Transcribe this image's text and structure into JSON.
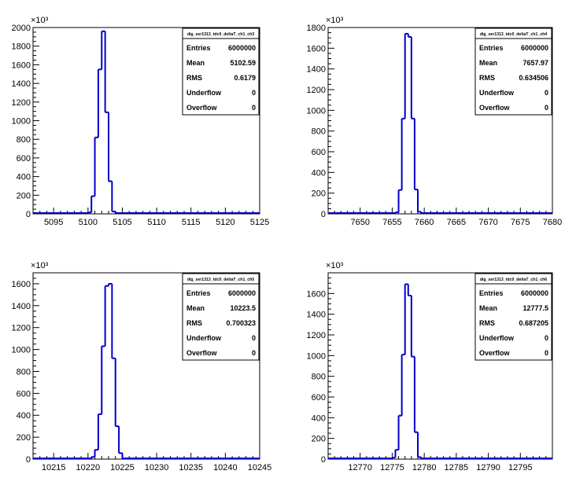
{
  "chart_data": [
    {
      "type": "histogram",
      "stats_title": "dig_ser1313_tdc0_deltaT_ch1_ch3",
      "stats": [
        {
          "label": "Entries",
          "value": "6000000"
        },
        {
          "label": "Mean",
          "value": "5102.59"
        },
        {
          "label": "RMS",
          "value": "0.6179"
        },
        {
          "label": "Underflow",
          "value": "0"
        },
        {
          "label": "Overflow",
          "value": "0"
        }
      ],
      "xlim": [
        5092,
        5125
      ],
      "ylim": [
        0,
        2000
      ],
      "y_exponent": "×10³",
      "xticks": [
        "5095",
        "5100",
        "5105",
        "5110",
        "5115",
        "5120",
        "5125"
      ],
      "yticks": [
        "0",
        "200",
        "400",
        "600",
        "800",
        "1000",
        "1200",
        "1400",
        "1600",
        "1800",
        "2000"
      ],
      "bin_width": 0.5,
      "bins": [
        {
          "x": 5100.0,
          "y": 15
        },
        {
          "x": 5100.5,
          "y": 190
        },
        {
          "x": 5101.0,
          "y": 820
        },
        {
          "x": 5101.5,
          "y": 1550
        },
        {
          "x": 5102.0,
          "y": 1960
        },
        {
          "x": 5102.5,
          "y": 1090
        },
        {
          "x": 5103.0,
          "y": 350
        },
        {
          "x": 5103.5,
          "y": 25
        }
      ],
      "color": "#0000cc"
    },
    {
      "type": "histogram",
      "stats_title": "dig_ser1313_tdc0_deltaT_ch1_ch4",
      "stats": [
        {
          "label": "Entries",
          "value": "6000000"
        },
        {
          "label": "Mean",
          "value": "7657.97"
        },
        {
          "label": "RMS",
          "value": "0.634506"
        },
        {
          "label": "Underflow",
          "value": "0"
        },
        {
          "label": "Overflow",
          "value": "0"
        }
      ],
      "xlim": [
        7645,
        7680
      ],
      "ylim": [
        0,
        1800
      ],
      "y_exponent": "×10³",
      "xticks": [
        "7650",
        "7655",
        "7660",
        "7665",
        "7670",
        "7675",
        "7680"
      ],
      "yticks": [
        "0",
        "200",
        "400",
        "600",
        "800",
        "1000",
        "1200",
        "1400",
        "1600",
        "1800"
      ],
      "bin_width": 0.5,
      "bins": [
        {
          "x": 7655.5,
          "y": 15
        },
        {
          "x": 7656.0,
          "y": 230
        },
        {
          "x": 7656.5,
          "y": 920
        },
        {
          "x": 7657.0,
          "y": 1740
        },
        {
          "x": 7657.5,
          "y": 1710
        },
        {
          "x": 7658.0,
          "y": 920
        },
        {
          "x": 7658.5,
          "y": 235
        },
        {
          "x": 7659.0,
          "y": 20
        }
      ],
      "color": "#0000cc"
    },
    {
      "type": "histogram",
      "stats_title": "dig_ser1313_tdc0_deltaT_ch1_ch5",
      "stats": [
        {
          "label": "Entries",
          "value": "6000000"
        },
        {
          "label": "Mean",
          "value": "10223.5"
        },
        {
          "label": "RMS",
          "value": "0.700323"
        },
        {
          "label": "Underflow",
          "value": "0"
        },
        {
          "label": "Overflow",
          "value": "0"
        }
      ],
      "xlim": [
        10212,
        10245
      ],
      "ylim": [
        0,
        1700
      ],
      "y_exponent": "×10³",
      "xticks": [
        "10215",
        "10220",
        "10225",
        "10230",
        "10235",
        "10240",
        "10245"
      ],
      "yticks": [
        "0",
        "200",
        "400",
        "600",
        "800",
        "1000",
        "1200",
        "1400",
        "1600"
      ],
      "bin_width": 0.5,
      "bins": [
        {
          "x": 10220.5,
          "y": 20
        },
        {
          "x": 10221.0,
          "y": 85
        },
        {
          "x": 10221.5,
          "y": 410
        },
        {
          "x": 10222.0,
          "y": 1030
        },
        {
          "x": 10222.5,
          "y": 1580
        },
        {
          "x": 10223.0,
          "y": 1600
        },
        {
          "x": 10223.5,
          "y": 920
        },
        {
          "x": 10224.0,
          "y": 300
        },
        {
          "x": 10224.5,
          "y": 55
        }
      ],
      "color": "#0000cc"
    },
    {
      "type": "histogram",
      "stats_title": "dig_ser1313_tdc0_deltaT_ch1_ch6",
      "stats": [
        {
          "label": "Entries",
          "value": "6000000"
        },
        {
          "label": "Mean",
          "value": "12777.5"
        },
        {
          "label": "RMS",
          "value": "0.687205"
        },
        {
          "label": "Underflow",
          "value": "0"
        },
        {
          "label": "Overflow",
          "value": "0"
        }
      ],
      "xlim": [
        12765,
        12800
      ],
      "ylim": [
        0,
        1800
      ],
      "y_exponent": "×10³",
      "xticks": [
        "12770",
        "12775",
        "12780",
        "12785",
        "12790",
        "12795"
      ],
      "yticks": [
        "0",
        "200",
        "400",
        "600",
        "800",
        "1000",
        "1200",
        "1400",
        "1600"
      ],
      "bin_width": 0.5,
      "bins": [
        {
          "x": 12775.0,
          "y": 15
        },
        {
          "x": 12775.5,
          "y": 90
        },
        {
          "x": 12776.0,
          "y": 420
        },
        {
          "x": 12776.5,
          "y": 1010
        },
        {
          "x": 12777.0,
          "y": 1690
        },
        {
          "x": 12777.5,
          "y": 1580
        },
        {
          "x": 12778.0,
          "y": 990
        },
        {
          "x": 12778.5,
          "y": 260
        },
        {
          "x": 12779.0,
          "y": 20
        }
      ],
      "color": "#0000cc"
    }
  ]
}
